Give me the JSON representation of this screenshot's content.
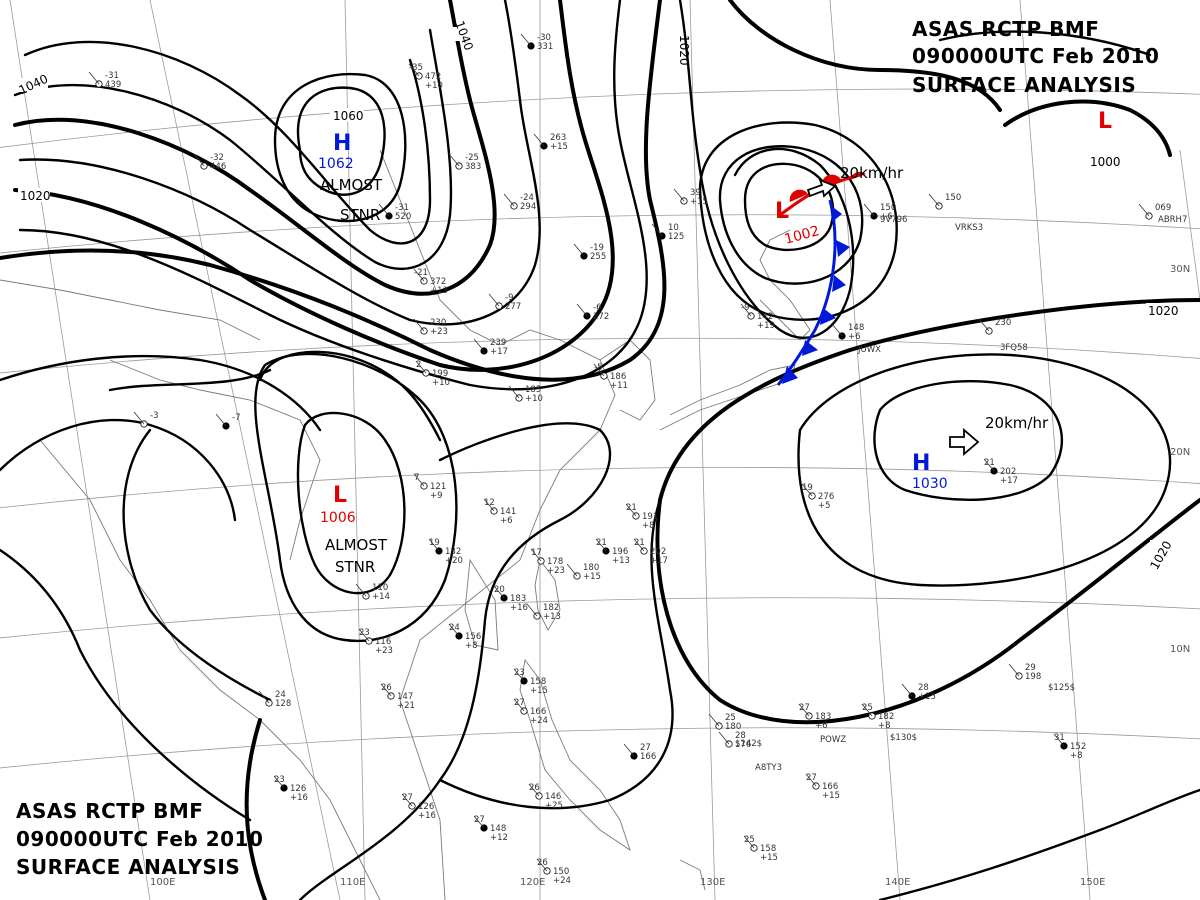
{
  "titles": {
    "top_right": {
      "line1": "ASAS    RCTP    BMF",
      "line2": "090000UTC    Feb    2010",
      "line3": "SURFACE  ANALYSIS"
    },
    "bottom_left": {
      "line1": "ASAS    RCTP    BMF",
      "line2": "090000UTC    Feb    2010",
      "line3": "SURFACE  ANALYSIS"
    }
  },
  "pressure_systems": [
    {
      "type": "H",
      "pressure": "1062",
      "note": "ALMOST STNR",
      "label_color": "#0018d8"
    },
    {
      "type": "L",
      "pressure": "1006",
      "note": "ALMOST STNR",
      "label_color": "#e00000"
    },
    {
      "type": "L",
      "pressure": "1002",
      "note": "20km/hr",
      "label_color": "#e00000"
    },
    {
      "type": "H",
      "pressure": "1030",
      "note": "20km/hr",
      "label_color": "#0018d8"
    },
    {
      "type": "L",
      "pressure": "",
      "note": "",
      "label_color": "#e00000"
    }
  ],
  "isobar_labels": [
    "1060",
    "1040",
    "1040",
    "1020",
    "1020",
    "1000",
    "1020",
    "1020"
  ],
  "longitude_labels": [
    "100E",
    "110E",
    "120E",
    "130E",
    "140E",
    "150E"
  ],
  "latitude_labels": [
    "30N",
    "20N",
    "10N"
  ],
  "fronts": {
    "cold_front_color": "#0018d8",
    "warm_front_color": "#e00000"
  },
  "station_labels": [
    "-30 331",
    "-35 472 +10",
    "-31 439",
    "263 +15",
    "-25 383",
    "-32 446",
    "-31 520",
    "-24 294",
    "-21 372 +13",
    "-19 255",
    "-9 277",
    "230 +23",
    "239 +17",
    "185 +10",
    "2 199 +10",
    "-6 272",
    "-5 186 +11",
    "39 +15",
    "10 125",
    "-9 142 +19",
    "150",
    "148 +6",
    "230",
    "069",
    "150 +6",
    "7 121 +9",
    "12 141 +6",
    "19 132 +20",
    "17 178 +23",
    "180 +15",
    "20 183 +16",
    "182 +13",
    "23 116 +23",
    "24 156 +8",
    "26 147 +21",
    "24 128",
    "23 158 +15",
    "27 166 +24",
    "26 146 +25",
    "27 148 +12",
    "26 150 +24",
    "25 158 +15",
    "23 126 +16",
    "27 126 +16",
    "21 191 +8",
    "21 196 +13",
    "21 202 +17",
    "19 276 +5",
    "21 202 +17",
    "27 183 +6",
    "25 182 +8",
    "28 +15",
    "29 198",
    "27 166 +15",
    "31 152 +8",
    "25 180",
    "28 176",
    "27 166",
    "110 +14",
    "-3",
    "-7"
  ],
  "ship_calls": [
    "9V796",
    "VRKS3",
    "ABRH7",
    "3FQ58",
    "JUWX",
    "A8TY3",
    "POWZ",
    "$142$",
    "$130$",
    "$125$"
  ]
}
